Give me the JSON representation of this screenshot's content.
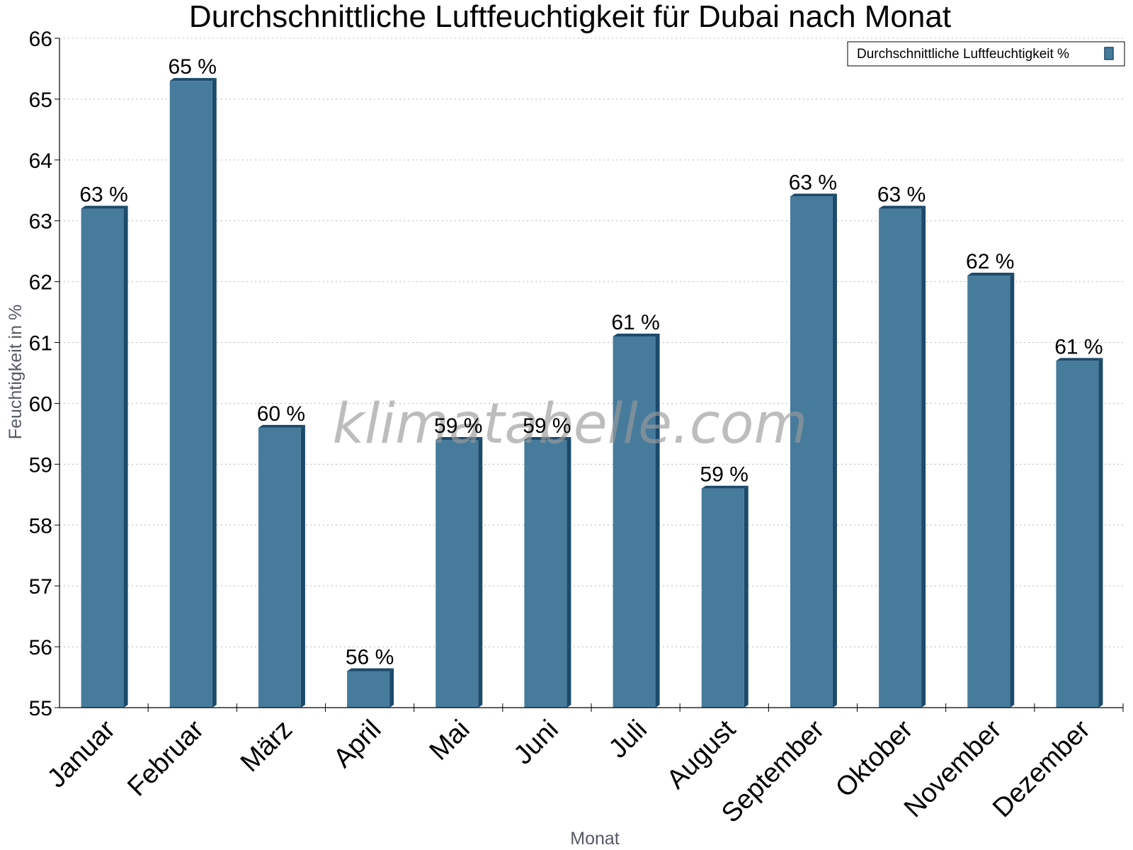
{
  "chart_data": {
    "type": "bar",
    "title": "Durchschnittliche Luftfeuchtigkeit für Dubai nach Monat",
    "xlabel": "Monat",
    "ylabel": "Feuchtigkeit in %",
    "ylim": [
      55,
      66
    ],
    "yticks": [
      55,
      56,
      57,
      58,
      59,
      60,
      61,
      62,
      63,
      64,
      65,
      66
    ],
    "grid": "horizontal-dotted",
    "legend_position": "top-right",
    "categories": [
      "Januar",
      "Februar",
      "März",
      "April",
      "Mai",
      "Juni",
      "Juli",
      "August",
      "September",
      "Oktober",
      "November",
      "Dezember"
    ],
    "series": [
      {
        "name": "Durchschnittliche Luftfeuchtigkeit %",
        "color": "#477b9c",
        "values": [
          63.2,
          65.3,
          59.6,
          55.6,
          59.4,
          59.4,
          61.1,
          58.6,
          63.4,
          63.2,
          62.1,
          60.7
        ],
        "labels": [
          "63 %",
          "65 %",
          "60 %",
          "56 %",
          "59 %",
          "59 %",
          "61 %",
          "59 %",
          "63 %",
          "63 %",
          "62 %",
          "61 %"
        ]
      }
    ]
  },
  "watermark": "klimatabelle.com"
}
